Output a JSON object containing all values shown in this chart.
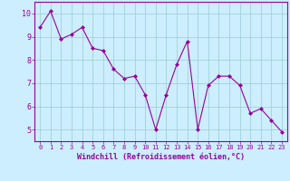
{
  "x": [
    0,
    1,
    2,
    3,
    4,
    5,
    6,
    7,
    8,
    9,
    10,
    11,
    12,
    13,
    14,
    15,
    16,
    17,
    18,
    19,
    20,
    21,
    22,
    23
  ],
  "y": [
    9.4,
    10.1,
    8.9,
    9.1,
    9.4,
    8.5,
    8.4,
    7.6,
    7.2,
    7.3,
    6.5,
    5.0,
    6.5,
    7.8,
    8.8,
    5.0,
    6.9,
    7.3,
    7.3,
    6.9,
    5.7,
    5.9,
    5.4,
    4.9
  ],
  "line_color": "#990099",
  "marker": "D",
  "marker_size": 2,
  "bg_color": "#cceeff",
  "grid_color": "#99cccc",
  "xlabel": "Windchill (Refroidissement éolien,°C)",
  "xlabel_color": "#990099",
  "tick_color": "#990099",
  "ylim": [
    4.5,
    10.5
  ],
  "yticks": [
    5,
    6,
    7,
    8,
    9,
    10
  ],
  "xlim": [
    -0.5,
    23.5
  ],
  "xticks": [
    0,
    1,
    2,
    3,
    4,
    5,
    6,
    7,
    8,
    9,
    10,
    11,
    12,
    13,
    14,
    15,
    16,
    17,
    18,
    19,
    20,
    21,
    22,
    23
  ],
  "spine_color": "#990099",
  "linewidth": 0.8
}
